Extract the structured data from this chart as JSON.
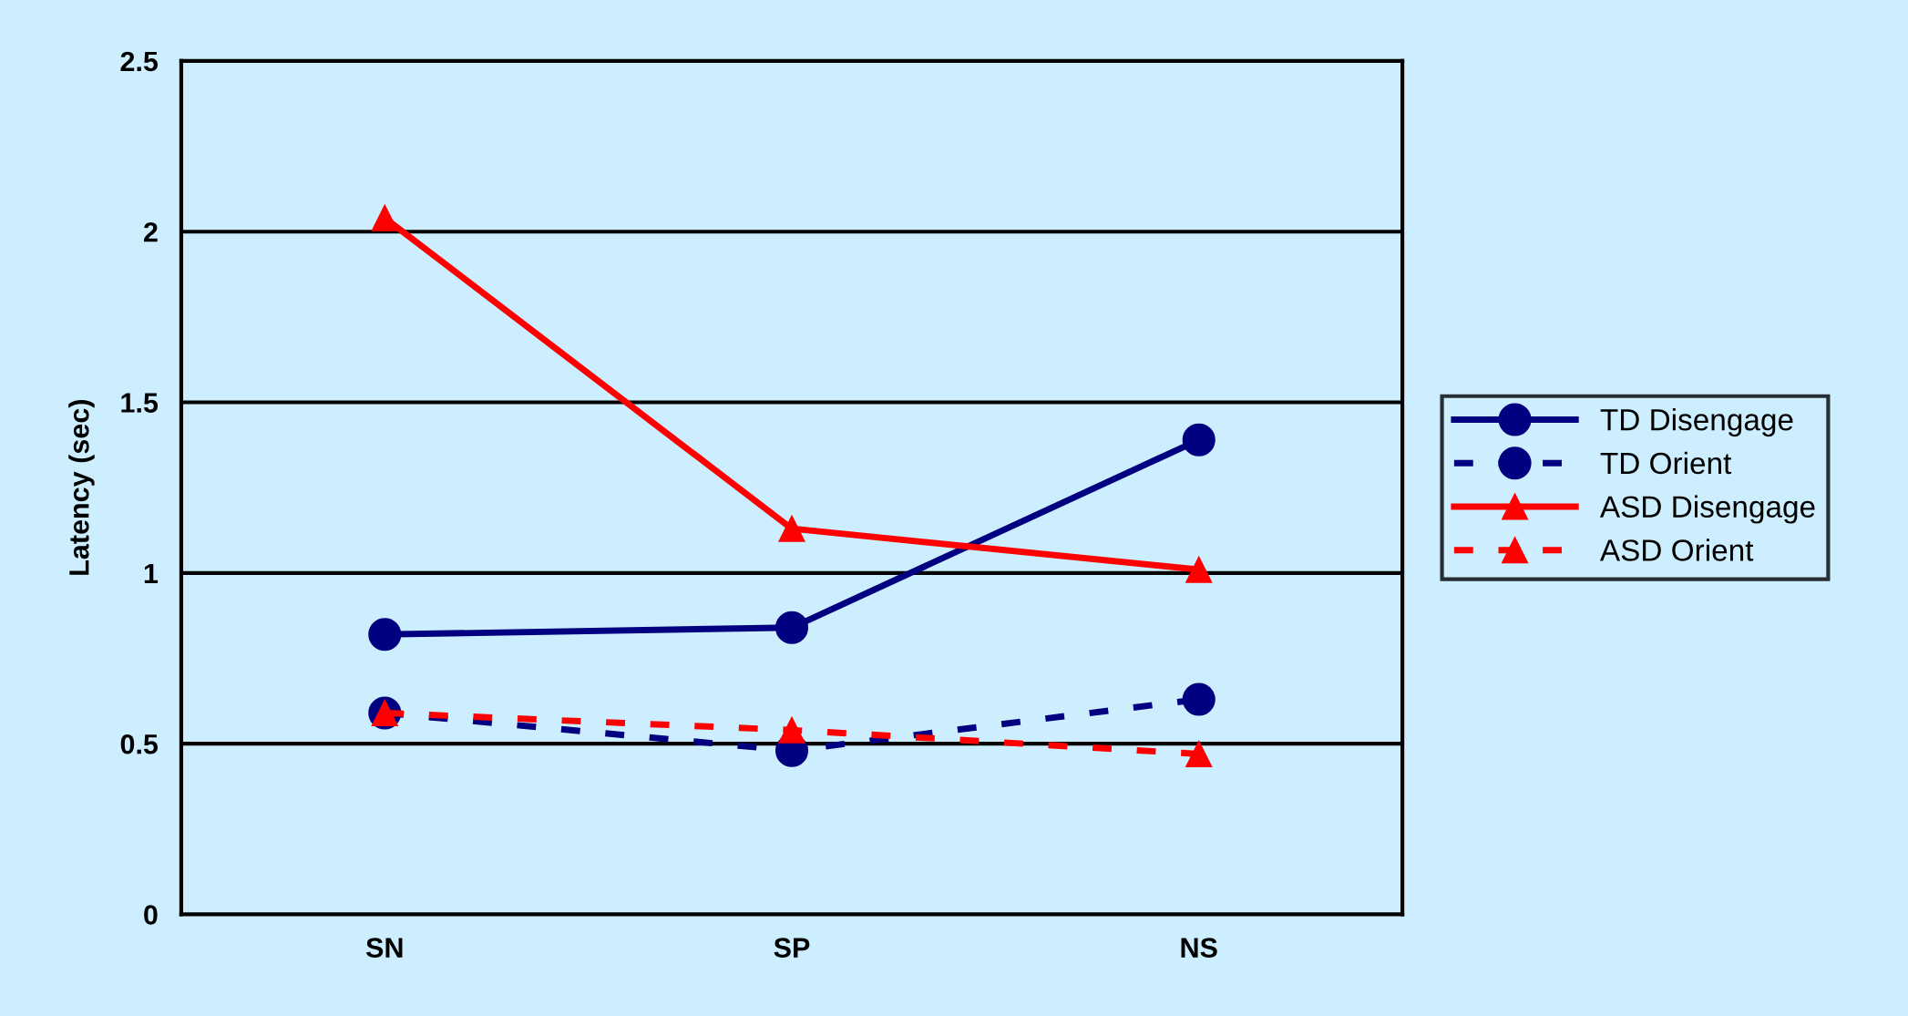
{
  "chart_data": {
    "type": "line",
    "ylabel": "Latency (sec)",
    "categories": [
      "SN",
      "SP",
      "NS"
    ],
    "ylim": [
      0,
      2.5
    ],
    "yticks": [
      0,
      0.5,
      1,
      1.5,
      2,
      2.5
    ],
    "grid": "y",
    "legend": "right",
    "series": [
      {
        "name": "TD Disengage",
        "color": "#000080",
        "marker": "circle",
        "line_style": "solid",
        "values": [
          0.82,
          0.84,
          1.39
        ]
      },
      {
        "name": "TD Orient",
        "color": "#000080",
        "marker": "circle",
        "line_style": "dashed",
        "values": [
          0.59,
          0.48,
          0.63
        ]
      },
      {
        "name": "ASD Disengage",
        "color": "#ff0000",
        "marker": "triangle",
        "line_style": "solid",
        "values": [
          2.04,
          1.13,
          1.01
        ]
      },
      {
        "name": "ASD Orient",
        "color": "#ff0000",
        "marker": "triangle",
        "line_style": "dashed",
        "values": [
          0.59,
          0.54,
          0.47
        ]
      }
    ]
  }
}
